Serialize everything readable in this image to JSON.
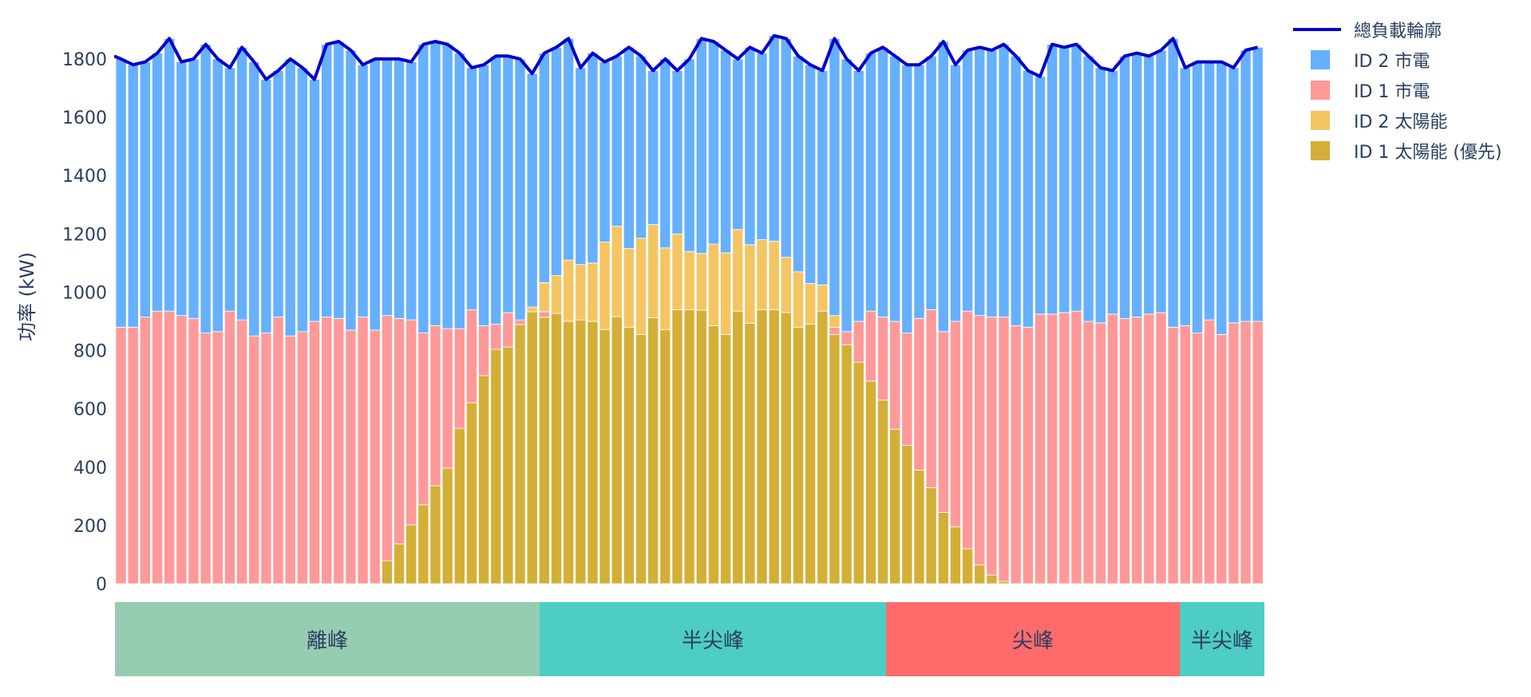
{
  "chart_data": {
    "type": "bar",
    "barmode": "stack",
    "title": "",
    "xlabel": "",
    "ylabel": "功率 (kW)",
    "ylim": [
      0,
      1900
    ],
    "yticks": [
      0,
      200,
      400,
      600,
      800,
      1000,
      1200,
      1400,
      1600,
      1800
    ],
    "n_bars": 95,
    "legend_position": "right-top",
    "series": [
      {
        "name": "ID 1 太陽能 (優先)",
        "type": "bar",
        "color": "#d4af37",
        "values": [
          0,
          0,
          0,
          0,
          0,
          0,
          0,
          0,
          0,
          0,
          0,
          0,
          0,
          0,
          0,
          0,
          0,
          0,
          0,
          0,
          0,
          0,
          79,
          137,
          202,
          271,
          336,
          397,
          533,
          621,
          714,
          804,
          812,
          889,
          933,
          914,
          927,
          900,
          905,
          900,
          872,
          916,
          880,
          855,
          912,
          872,
          940,
          940,
          938,
          885,
          855,
          935,
          893,
          940,
          940,
          930,
          880,
          890,
          935,
          855,
          820,
          760,
          695,
          630,
          530,
          475,
          390,
          330,
          245,
          195,
          120,
          65,
          30,
          8,
          0,
          0,
          0,
          0,
          0,
          0,
          0,
          0,
          0,
          0,
          0,
          0,
          0,
          0,
          0,
          0,
          0,
          0,
          0,
          0,
          0,
          0,
          0
        ]
      },
      {
        "name": "ID 2 太陽能",
        "type": "bar",
        "color": "#f5c563",
        "values": [
          0,
          0,
          0,
          0,
          0,
          0,
          0,
          0,
          0,
          0,
          0,
          0,
          0,
          0,
          0,
          0,
          0,
          0,
          0,
          0,
          0,
          0,
          0,
          0,
          0,
          0,
          0,
          0,
          0,
          0,
          0,
          0,
          0,
          0,
          16,
          100,
          130,
          210,
          190,
          200,
          300,
          310,
          270,
          330,
          320,
          280,
          260,
          200,
          195,
          280,
          280,
          280,
          270,
          240,
          235,
          190,
          190,
          140,
          90,
          40,
          0,
          0,
          0,
          0,
          0,
          0,
          0,
          0,
          0,
          0,
          0,
          0,
          0,
          0,
          0,
          0,
          0,
          0,
          0,
          0,
          0,
          0,
          0,
          0,
          0,
          0,
          0,
          0,
          0,
          0,
          0,
          0,
          0,
          0,
          0
        ]
      },
      {
        "name": "ID 1 市電",
        "type": "bar",
        "color": "#ff9999",
        "ID1_total": [
          880,
          880,
          915,
          935,
          935,
          920,
          910,
          860,
          865,
          935,
          905,
          850,
          860,
          915,
          850,
          865,
          900,
          915,
          910,
          870,
          915,
          870,
          920,
          910,
          905,
          860,
          885,
          875,
          875,
          940,
          885,
          890,
          930,
          905,
          915,
          933,
          927,
          900,
          905,
          900,
          872,
          916,
          880,
          855,
          912,
          872,
          940,
          940,
          938,
          885,
          855,
          935,
          893,
          940,
          940,
          930,
          880,
          890,
          935,
          880,
          865,
          900,
          935,
          915,
          900,
          860,
          910,
          940,
          865,
          900,
          935,
          920,
          915,
          915,
          885,
          880,
          925,
          925,
          930,
          935,
          900,
          895,
          925,
          910,
          915,
          925,
          930,
          880,
          885,
          860,
          905,
          855,
          895,
          900,
          900
        ]
      },
      {
        "name": "ID 2 市電",
        "type": "bar",
        "color": "#66b0ff"
      },
      {
        "name": "總負載輪廓",
        "type": "line",
        "color": "#0000cc",
        "values": [
          1800,
          1780,
          1790,
          1820,
          1870,
          1790,
          1800,
          1850,
          1800,
          1770,
          1840,
          1790,
          1730,
          1760,
          1800,
          1770,
          1730,
          1850,
          1860,
          1830,
          1780,
          1800,
          1800,
          1800,
          1790,
          1850,
          1860,
          1850,
          1820,
          1770,
          1780,
          1810,
          1810,
          1800,
          1750,
          1820,
          1840,
          1870,
          1770,
          1820,
          1790,
          1810,
          1840,
          1810,
          1760,
          1800,
          1760,
          1800,
          1870,
          1860,
          1830,
          1800,
          1840,
          1820,
          1880,
          1870,
          1810,
          1780,
          1760,
          1870,
          1800,
          1760,
          1820,
          1840,
          1810,
          1780,
          1780,
          1810,
          1860,
          1780,
          1830,
          1840,
          1830,
          1850,
          1810,
          1760,
          1740,
          1850,
          1840,
          1850,
          1810,
          1770,
          1760,
          1810,
          1820,
          1810,
          1830,
          1870,
          1770,
          1790,
          1790,
          1790,
          1770,
          1830,
          1840
        ]
      }
    ],
    "tou_bands": [
      {
        "label": "離峰",
        "start": 0,
        "end": 35,
        "color": "#96cdb2"
      },
      {
        "label": "半尖峰",
        "start": 35,
        "end": 64,
        "color": "#4ecdc4"
      },
      {
        "label": "尖峰",
        "start": 64,
        "end": 88,
        "color": "#ff6b6b"
      },
      {
        "label": "半尖峰",
        "start": 88,
        "end": 95,
        "color": "#4ecdc4"
      }
    ]
  },
  "legend": {
    "items": [
      {
        "label": "總負載輪廓",
        "kind": "line",
        "color": "#0000cc"
      },
      {
        "label": "ID 2 市電",
        "kind": "box",
        "color": "#66b0ff"
      },
      {
        "label": "ID 1 市電",
        "kind": "box",
        "color": "#ff9999"
      },
      {
        "label": "ID 2 太陽能",
        "kind": "box",
        "color": "#f5c563"
      },
      {
        "label": "ID 1 太陽能 (優先)",
        "kind": "box",
        "color": "#d4af37"
      }
    ]
  }
}
